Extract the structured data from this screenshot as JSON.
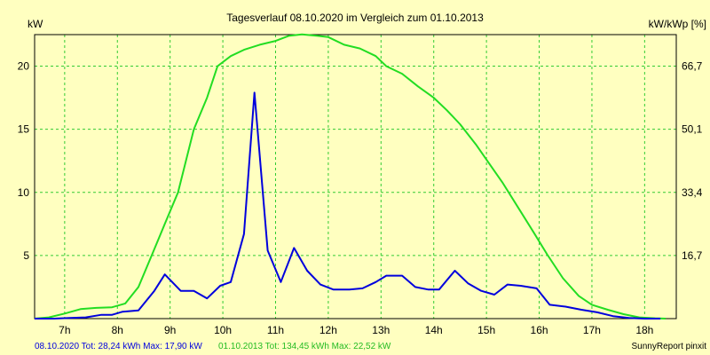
{
  "chart_data": {
    "type": "line",
    "title": "Tagesverlauf 08.10.2020 im Vergleich zum 01.10.2013",
    "ylabel_left": "kW",
    "ylabel_right": "kW/kWp [%]",
    "xlim": [
      6.43,
      18.6
    ],
    "ylim": [
      0,
      22.5
    ],
    "x_ticks": [
      {
        "value": 7,
        "label": "7h"
      },
      {
        "value": 8,
        "label": "8h"
      },
      {
        "value": 9,
        "label": "9h"
      },
      {
        "value": 10,
        "label": "10h"
      },
      {
        "value": 11,
        "label": "11h"
      },
      {
        "value": 12,
        "label": "12h"
      },
      {
        "value": 13,
        "label": "13h"
      },
      {
        "value": 14,
        "label": "14h"
      },
      {
        "value": 15,
        "label": "15h"
      },
      {
        "value": 16,
        "label": "16h"
      },
      {
        "value": 17,
        "label": "17h"
      },
      {
        "value": 18,
        "label": "18h"
      }
    ],
    "y_ticks_left": [
      {
        "value": 5,
        "label": "5"
      },
      {
        "value": 10,
        "label": "10"
      },
      {
        "value": 15,
        "label": "15"
      },
      {
        "value": 20,
        "label": "20"
      }
    ],
    "y_ticks_right": [
      {
        "value": 5,
        "label": "16,7"
      },
      {
        "value": 10,
        "label": "33,4"
      },
      {
        "value": 15,
        "label": "50,1"
      },
      {
        "value": 20,
        "label": "66,7"
      }
    ],
    "grid": true,
    "series": [
      {
        "name": "08.10.2020",
        "color": "#0000DD",
        "x": [
          6.43,
          6.8,
          7.1,
          7.4,
          7.7,
          7.9,
          8.1,
          8.4,
          8.7,
          8.9,
          9.2,
          9.45,
          9.7,
          9.95,
          10.15,
          10.4,
          10.6,
          10.85,
          11.1,
          11.35,
          11.6,
          11.85,
          12.1,
          12.4,
          12.65,
          12.9,
          13.1,
          13.4,
          13.65,
          13.9,
          14.1,
          14.4,
          14.65,
          14.9,
          15.15,
          15.4,
          15.65,
          15.95,
          16.2,
          16.5,
          16.8,
          17.1,
          17.4,
          17.7,
          18.0,
          18.3
        ],
        "y": [
          0,
          0,
          0.05,
          0.1,
          0.3,
          0.3,
          0.55,
          0.65,
          2.2,
          3.5,
          2.2,
          2.2,
          1.6,
          2.6,
          2.9,
          6.7,
          17.9,
          5.4,
          2.9,
          5.6,
          3.8,
          2.7,
          2.3,
          2.3,
          2.4,
          2.9,
          3.4,
          3.4,
          2.5,
          2.3,
          2.3,
          3.8,
          2.8,
          2.2,
          1.9,
          2.7,
          2.6,
          2.4,
          1.1,
          0.95,
          0.7,
          0.5,
          0.2,
          0.05,
          0,
          0
        ]
      },
      {
        "name": "01.10.2013",
        "color": "#22DD22",
        "x": [
          6.43,
          6.7,
          7.0,
          7.3,
          7.6,
          7.9,
          8.15,
          8.4,
          8.65,
          8.9,
          9.15,
          9.45,
          9.7,
          9.9,
          10.15,
          10.4,
          10.7,
          11.0,
          11.25,
          11.5,
          11.8,
          12.0,
          12.3,
          12.6,
          12.9,
          13.1,
          13.4,
          13.7,
          14.0,
          14.25,
          14.5,
          14.8,
          15.0,
          15.3,
          15.6,
          15.9,
          16.15,
          16.45,
          16.75,
          17.0,
          17.3,
          17.6,
          17.9,
          18.2,
          18.4
        ],
        "y": [
          0,
          0.1,
          0.4,
          0.75,
          0.85,
          0.9,
          1.2,
          2.5,
          5.0,
          7.5,
          10.0,
          15.0,
          17.5,
          20.0,
          20.8,
          21.3,
          21.7,
          22.0,
          22.4,
          22.52,
          22.4,
          22.3,
          21.7,
          21.4,
          20.8,
          20.0,
          19.4,
          18.4,
          17.5,
          16.5,
          15.4,
          13.8,
          12.6,
          10.8,
          8.8,
          6.8,
          5.1,
          3.2,
          1.8,
          1.1,
          0.7,
          0.35,
          0.1,
          0.03,
          0
        ]
      }
    ]
  },
  "footer": {
    "series1_text": "08.10.2020 Tot: 28,24 kWh Max: 17,90 kW",
    "series2_text": "01.10.2013 Tot: 134,45 kWh Max: 22,52 kW",
    "credit": "SunnyReport pinxit"
  }
}
